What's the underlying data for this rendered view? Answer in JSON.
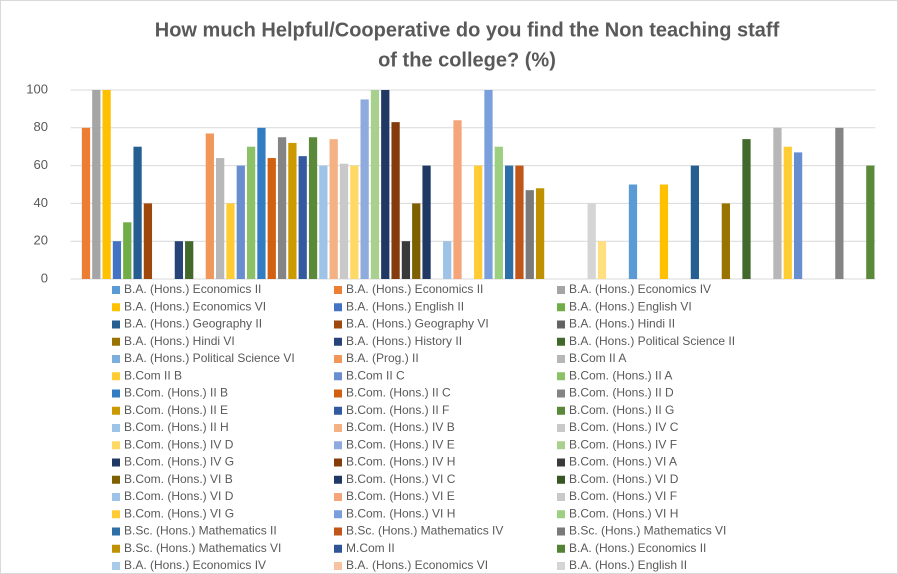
{
  "chart_data": {
    "type": "bar",
    "title": [
      "How much Helpful/Cooperative do you find the Non teaching staff",
      "of the college? (%)"
    ],
    "categories": [
      null
    ],
    "ylim": [
      0,
      100
    ],
    "yticks": [
      0,
      20,
      40,
      60,
      80,
      100
    ],
    "grid": true,
    "series": [
      {
        "name": "B.A. (Hons.) Economics II",
        "color": "#5b9bd5",
        "values": [
          0
        ]
      },
      {
        "name": "B.A. (Hons.) Economics II",
        "color": "#ed7d31",
        "values": [
          80
        ]
      },
      {
        "name": "B.A. (Hons.) Economics IV",
        "color": "#a5a5a5",
        "values": [
          100
        ]
      },
      {
        "name": "B.A. (Hons.) Economics VI",
        "color": "#ffc000",
        "values": [
          100
        ]
      },
      {
        "name": "B.A. (Hons.) English II",
        "color": "#4472c4",
        "values": [
          20
        ]
      },
      {
        "name": "B.A. (Hons.) English VI",
        "color": "#70ad47",
        "values": [
          30
        ]
      },
      {
        "name": "B.A. (Hons.) Geography II",
        "color": "#255e91",
        "values": [
          70
        ]
      },
      {
        "name": "B.A. (Hons.) Geography VI",
        "color": "#9e480e",
        "values": [
          40
        ]
      },
      {
        "name": "B.A. (Hons.) Hindi II",
        "color": "#636363",
        "values": [
          0
        ]
      },
      {
        "name": "B.A. (Hons.) Hindi VI",
        "color": "#997300",
        "values": [
          0
        ]
      },
      {
        "name": "B.A. (Hons.) History II",
        "color": "#264478",
        "values": [
          20
        ]
      },
      {
        "name": "B.A. (Hons.) Political Science II",
        "color": "#43682b",
        "values": [
          20
        ]
      },
      {
        "name": "B.A. (Hons.) Political Science VI",
        "color": "#7cafdd",
        "values": [
          0
        ]
      },
      {
        "name": "B.A. (Prog.) II",
        "color": "#f1975a",
        "values": [
          77
        ]
      },
      {
        "name": "B.Com II A",
        "color": "#b7b7b7",
        "values": [
          64
        ]
      },
      {
        "name": "B.Com II B",
        "color": "#ffcd33",
        "values": [
          40
        ]
      },
      {
        "name": "B.Com II C",
        "color": "#698ed0",
        "values": [
          60
        ]
      },
      {
        "name": "B.Com. (Hons.) II A",
        "color": "#8cc168",
        "values": [
          70
        ]
      },
      {
        "name": "B.Com. (Hons.) II B",
        "color": "#327dc2",
        "values": [
          80
        ]
      },
      {
        "name": "B.Com. (Hons.) II C",
        "color": "#d26012",
        "values": [
          64
        ]
      },
      {
        "name": "B.Com. (Hons.) II D",
        "color": "#848484",
        "values": [
          75
        ]
      },
      {
        "name": "B.Com. (Hons.) II E",
        "color": "#cc9a00",
        "values": [
          72
        ]
      },
      {
        "name": "B.Com. (Hons.) II F",
        "color": "#335aa1",
        "values": [
          65
        ]
      },
      {
        "name": "B.Com. (Hons.) II G",
        "color": "#5a8a39",
        "values": [
          75
        ]
      },
      {
        "name": "B.Com. (Hons.) II H",
        "color": "#9dc3e6",
        "values": [
          60
        ]
      },
      {
        "name": "B.Com. (Hons.) IV B",
        "color": "#f4b183",
        "values": [
          74
        ]
      },
      {
        "name": "B.Com. (Hons.) IV C",
        "color": "#c9c9c9",
        "values": [
          61
        ]
      },
      {
        "name": "B.Com. (Hons.) IV D",
        "color": "#ffd966",
        "values": [
          60
        ]
      },
      {
        "name": "B.Com. (Hons.) IV E",
        "color": "#8faadc",
        "values": [
          95
        ]
      },
      {
        "name": "B.Com. (Hons.) IV F",
        "color": "#a9d18e",
        "values": [
          100
        ]
      },
      {
        "name": "B.Com. (Hons.) IV G",
        "color": "#1f3864",
        "values": [
          100
        ]
      },
      {
        "name": "B.Com. (Hons.) IV H",
        "color": "#843c0c",
        "values": [
          83
        ]
      },
      {
        "name": "B.Com. (Hons.) VI A",
        "color": "#3a3a3a",
        "values": [
          20
        ]
      },
      {
        "name": "B.Com. (Hons.) VI B",
        "color": "#7f6000",
        "values": [
          40
        ]
      },
      {
        "name": "B.Com. (Hons.) VI C",
        "color": "#203864",
        "values": [
          60
        ]
      },
      {
        "name": "B.Com. (Hons.) VI D",
        "color": "#375623",
        "values": [
          0
        ]
      },
      {
        "name": "B.Com. (Hons.) VI D",
        "color": "#9dc3e6",
        "values": [
          20
        ]
      },
      {
        "name": "B.Com. (Hons.) VI E",
        "color": "#f4a67a",
        "values": [
          84
        ]
      },
      {
        "name": "B.Com. (Hons.) VI F",
        "color": "#c9c9c9",
        "values": [
          0
        ]
      },
      {
        "name": "B.Com. (Hons.) VI G",
        "color": "#ffcd33",
        "values": [
          60
        ]
      },
      {
        "name": "B.Com. (Hons.) VI H",
        "color": "#7a9fdd",
        "values": [
          100
        ]
      },
      {
        "name": "B.Com. (Hons.) VI H",
        "color": "#9ccf7f",
        "values": [
          70
        ]
      },
      {
        "name": "B.Sc. (Hons.) Mathematics II",
        "color": "#2e6fa8",
        "values": [
          60
        ]
      },
      {
        "name": "B.Sc. (Hons.) Mathematics IV",
        "color": "#c0561a",
        "values": [
          60
        ]
      },
      {
        "name": "B.Sc. (Hons.) Mathematics VI",
        "color": "#7a7a7a",
        "values": [
          47
        ]
      },
      {
        "name": "B.Sc. (Hons.) Mathematics VI",
        "color": "#bf9000",
        "values": [
          48
        ]
      },
      {
        "name": "M.Com II",
        "color": "#2f5597",
        "values": [
          0
        ]
      },
      {
        "name": "B.A. (Hons.) Economics II",
        "color": "#548235",
        "values": [
          0
        ]
      },
      {
        "name": "B.A. (Hons.) Economics IV",
        "color": "#a9cbea",
        "values": [
          0
        ]
      },
      {
        "name": "B.A. (Hons.) Economics VI",
        "color": "#f8c3a0",
        "values": [
          0
        ]
      },
      {
        "name": "B.A. (Hons.) English II",
        "color": "#d5d5d5",
        "values": [
          40
        ]
      },
      {
        "color": "#ffe080",
        "values": [
          20
        ]
      },
      {
        "color": "#a9bde6",
        "values": [
          0
        ]
      },
      {
        "color": "#b9daa3",
        "values": [
          0
        ]
      },
      {
        "color": "#5b9bd5",
        "values": [
          50
        ]
      },
      {
        "color": "#ed7d31",
        "values": [
          0
        ]
      },
      {
        "color": "#a5a5a5",
        "values": [
          0
        ]
      },
      {
        "color": "#ffc000",
        "values": [
          50
        ]
      },
      {
        "color": "#4472c4",
        "values": [
          0
        ]
      },
      {
        "color": "#70ad47",
        "values": [
          0
        ]
      },
      {
        "color": "#255e91",
        "values": [
          60
        ]
      },
      {
        "color": "#9e480e",
        "values": [
          0
        ]
      },
      {
        "color": "#636363",
        "values": [
          0
        ]
      },
      {
        "color": "#997300",
        "values": [
          40
        ]
      },
      {
        "color": "#264478",
        "values": [
          0
        ]
      },
      {
        "color": "#43682b",
        "values": [
          74
        ]
      },
      {
        "color": "#7cafdd",
        "values": [
          0
        ]
      },
      {
        "color": "#f1975a",
        "values": [
          0
        ]
      },
      {
        "color": "#b7b7b7",
        "values": [
          80
        ]
      },
      {
        "color": "#ffcd33",
        "values": [
          70
        ]
      },
      {
        "color": "#698ed0",
        "values": [
          67
        ]
      },
      {
        "color": "#8cc168",
        "values": [
          0
        ]
      },
      {
        "color": "#327dc2",
        "values": [
          0
        ]
      },
      {
        "color": "#d26012",
        "values": [
          0
        ]
      },
      {
        "color": "#848484",
        "values": [
          80
        ]
      },
      {
        "color": "#cc9a00",
        "values": [
          0
        ]
      },
      {
        "color": "#335aa1",
        "values": [
          0
        ]
      },
      {
        "color": "#5a8a39",
        "values": [
          60
        ]
      }
    ]
  }
}
